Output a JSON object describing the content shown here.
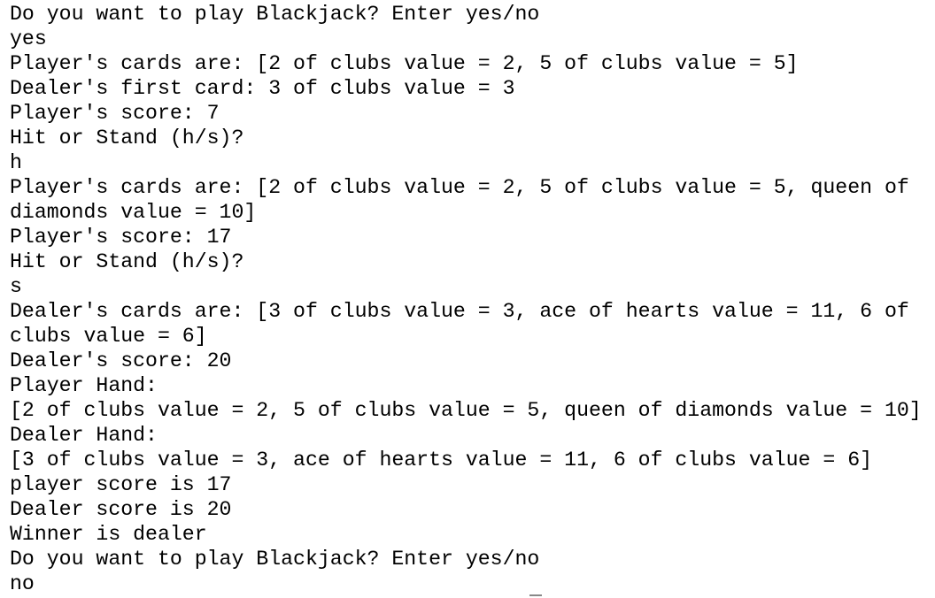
{
  "lines": [
    "Do you want to play Blackjack? Enter yes/no",
    "yes",
    "Player's cards are: [2 of clubs value = 2, 5 of clubs value = 5]",
    "Dealer's first card: 3 of clubs value = 3",
    "Player's score: 7",
    "Hit or Stand (h/s)?",
    "h",
    "Player's cards are: [2 of clubs value = 2, 5 of clubs value = 5, queen of",
    "diamonds value = 10]",
    "Player's score: 17",
    "Hit or Stand (h/s)?",
    "s",
    "Dealer's cards are: [3 of clubs value = 3, ace of hearts value = 11, 6 of",
    "clubs value = 6]",
    "Dealer's score: 20",
    "Player Hand:",
    "[2 of clubs value = 2, 5 of clubs value = 5, queen of diamonds value = 10]",
    "Dealer Hand:",
    "[3 of clubs value = 3, ace of hearts value = 11, 6 of clubs value = 6]",
    "player score is 17",
    "Dealer score is 20",
    "Winner is dealer",
    "Do you want to play Blackjack? Enter yes/no",
    "no"
  ]
}
